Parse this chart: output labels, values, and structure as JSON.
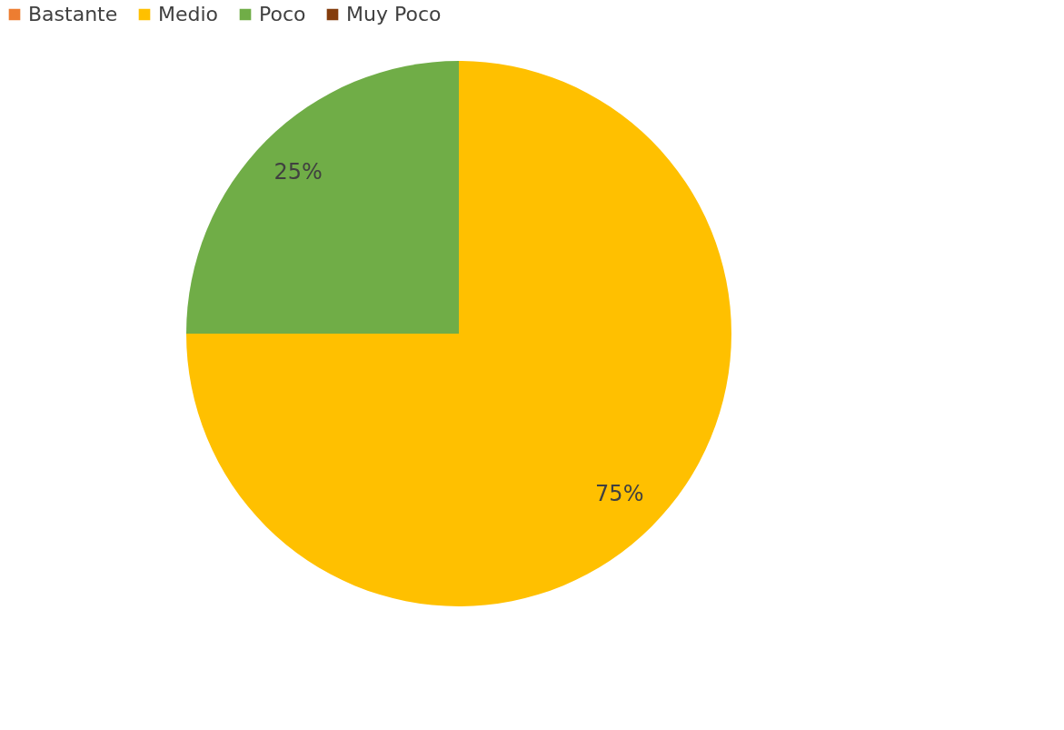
{
  "chart_data": {
    "type": "pie",
    "categories": [
      "Bastante",
      "Medio",
      "Poco",
      "Muy Poco"
    ],
    "values": [
      0,
      75,
      25,
      0
    ],
    "colors": [
      "#ed7d31",
      "#ffc000",
      "#70ad47",
      "#843c0c"
    ],
    "value_labels": [
      null,
      "75%",
      "25%",
      null
    ],
    "legend": "top left"
  }
}
